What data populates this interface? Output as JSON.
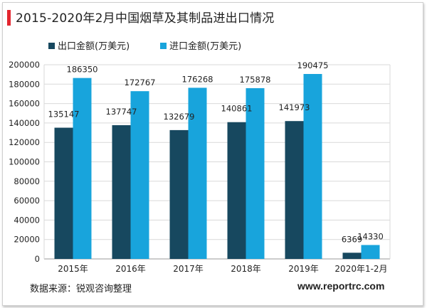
{
  "title": "2015-2020年2月中国烟草及其制品进出口情况",
  "source": "数据来源：锐观咨询整理",
  "website": "www.reportrc.com",
  "colors": {
    "export": "#17485f",
    "import": "#18a4dc",
    "accent": "#e3262f"
  },
  "chart_data": {
    "type": "bar",
    "categories": [
      "2015年",
      "2016年",
      "2017年",
      "2018年",
      "2019年",
      "2020年1-2月"
    ],
    "series": [
      {
        "name": "出口金额(万美元)",
        "values": [
          135147,
          137747,
          132679,
          140861,
          141973,
          6369
        ]
      },
      {
        "name": "进口金额(万美元)",
        "values": [
          186350,
          172767,
          176268,
          175878,
          190475,
          14330
        ]
      }
    ],
    "yticks": [
      "0",
      "20000",
      "40000",
      "60000",
      "80000",
      "100000",
      "120000",
      "140000",
      "160000",
      "180000",
      "200000"
    ],
    "ylim": [
      0,
      200000
    ],
    "grid": true,
    "legend_position": "top-left",
    "data_labels": true
  }
}
